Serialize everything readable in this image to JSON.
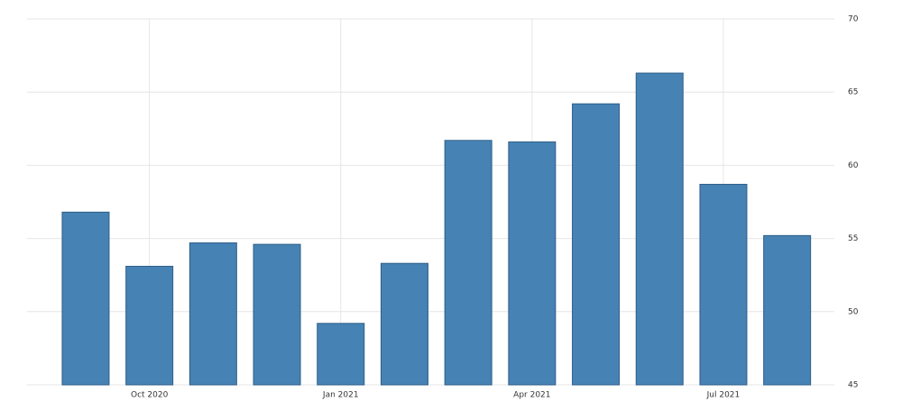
{
  "chart_data": {
    "type": "bar",
    "categories": [
      null,
      "Oct 2020",
      null,
      null,
      "Jan 2021",
      null,
      null,
      "Apr 2021",
      null,
      null,
      "Jul 2021",
      null
    ],
    "values": [
      56.8,
      53.1,
      54.7,
      54.6,
      49.2,
      53.3,
      61.7,
      61.6,
      64.2,
      66.3,
      58.7,
      55.2
    ],
    "color": "#4682b4",
    "ylim": [
      45,
      70
    ],
    "yticks": [
      45,
      50,
      55,
      60,
      65,
      70
    ],
    "grid": true
  }
}
